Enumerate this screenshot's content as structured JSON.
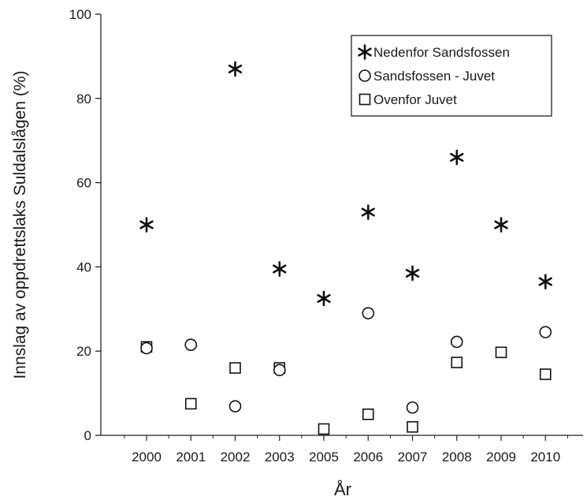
{
  "chart_data": {
    "type": "scatter",
    "title": "",
    "xlabel": "År",
    "ylabel": "Innslag av oppdrettslaks Suldalslågen (%)",
    "categories": [
      "2000",
      "2001",
      "2002",
      "2003",
      "2005",
      "2006",
      "2007",
      "2008",
      "2009",
      "2010"
    ],
    "ylim": [
      0,
      100
    ],
    "yticks": [
      0,
      20,
      40,
      60,
      80,
      100
    ],
    "grid": false,
    "legend_position": "top-right",
    "series": [
      {
        "name": "Nedenfor Sandsfossen",
        "marker": "star",
        "x": [
          "2000",
          "2002",
          "2003",
          "2005",
          "2006",
          "2007",
          "2008",
          "2009",
          "2010"
        ],
        "values": [
          50,
          87,
          39.5,
          32.5,
          53,
          38.5,
          66,
          50,
          36.5
        ]
      },
      {
        "name": "Sandsfossen - Juvet",
        "marker": "circle",
        "x": [
          "2000",
          "2001",
          "2002",
          "2003",
          "2006",
          "2007",
          "2008",
          "2010"
        ],
        "values": [
          20.7,
          21.5,
          6.9,
          15.5,
          29,
          6.6,
          22.2,
          24.5
        ]
      },
      {
        "name": "Ovenfor Juvet",
        "marker": "square",
        "x": [
          "2000",
          "2001",
          "2002",
          "2003",
          "2005",
          "2006",
          "2007",
          "2008",
          "2009",
          "2010"
        ],
        "values": [
          21,
          7.5,
          16,
          16,
          1.5,
          5,
          2,
          17.3,
          19.7,
          14.5
        ]
      }
    ]
  }
}
